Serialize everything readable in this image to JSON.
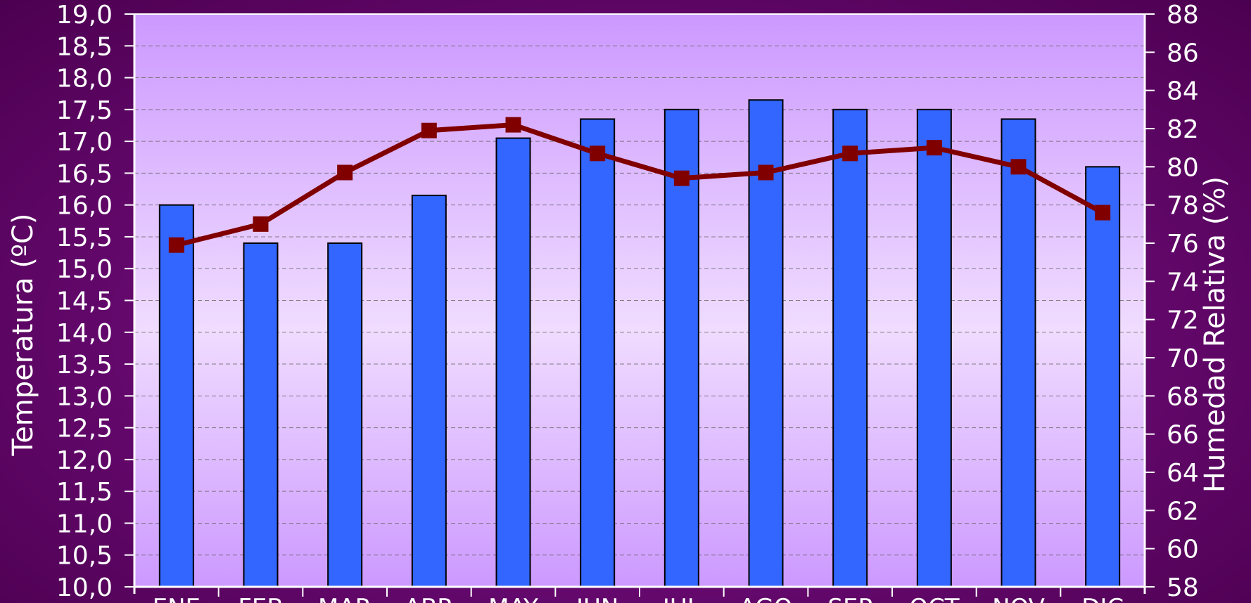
{
  "chart_data": {
    "type": "bar",
    "categories": [
      "ENE",
      "FEB",
      "MAR",
      "ABR",
      "MAY",
      "JUN",
      "JUL",
      "AGO",
      "SEP",
      "OCT",
      "NOV",
      "DIC"
    ],
    "series": [
      {
        "type": "bar",
        "axis": "left",
        "color": "#3366ff",
        "values": [
          16.0,
          15.4,
          15.4,
          16.15,
          17.05,
          17.35,
          17.5,
          17.65,
          17.5,
          17.5,
          17.35,
          16.6
        ]
      },
      {
        "type": "line",
        "axis": "right",
        "color": "#800000",
        "values": [
          75.9,
          77.0,
          79.7,
          81.9,
          82.2,
          80.7,
          79.4,
          79.7,
          80.7,
          81.0,
          80.0,
          77.6
        ]
      }
    ],
    "y_left": {
      "label": "Temperatura (ºC)",
      "range": [
        10,
        19
      ],
      "ticks": [
        "10,0",
        "10,5",
        "11,0",
        "11,5",
        "12,0",
        "12,5",
        "13,0",
        "13,5",
        "14,0",
        "14,5",
        "15,0",
        "15,5",
        "16,0",
        "16,5",
        "17,0",
        "17,5",
        "18,0",
        "18,5",
        "19,0"
      ]
    },
    "y_right": {
      "label": "Humedad Relativa (%)",
      "range": [
        58,
        88
      ],
      "ticks": [
        "58",
        "60",
        "62",
        "64",
        "66",
        "68",
        "70",
        "72",
        "74",
        "76",
        "78",
        "80",
        "82",
        "84",
        "86",
        "88"
      ]
    },
    "grid": true,
    "legend": "none",
    "colors": {
      "background_outer": "#5a0062",
      "plot_center": "#f0dcff",
      "plot_edge": "#cc99ff",
      "bar": "#3366ff",
      "line": "#800000",
      "text": "#ffffff"
    }
  }
}
